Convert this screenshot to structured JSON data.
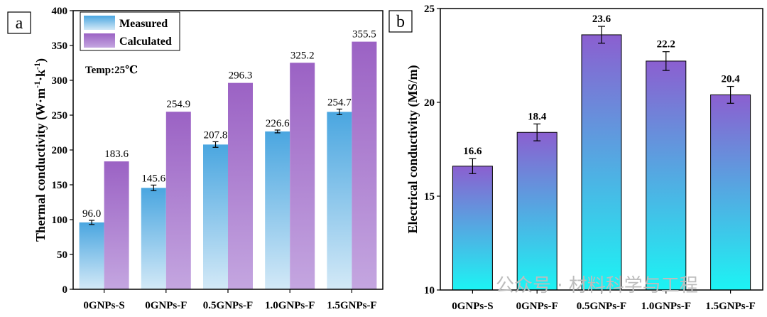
{
  "chart_data": [
    {
      "type": "bar",
      "panel_label": "a",
      "categories": [
        "0GNPs-S",
        "0GNPs-F",
        "0.5GNPs-F",
        "1.0GNPs-F",
        "1.5GNPs-F"
      ],
      "series": [
        {
          "name": "Measured",
          "values": [
            96.0,
            145.6,
            207.8,
            226.6,
            254.7
          ],
          "labels": [
            "96.0",
            "145.6",
            "207.8",
            "226.6",
            "254.7"
          ],
          "error": [
            3,
            4,
            4,
            2,
            4
          ],
          "color_top": "#4aa6e0",
          "color_bottom": "#d3e9f7"
        },
        {
          "name": "Calculated",
          "values": [
            183.6,
            254.9,
            296.3,
            325.2,
            355.5
          ],
          "labels": [
            "183.6",
            "254.9",
            "296.3",
            "325.2",
            "355.5"
          ],
          "color_top": "#9b62c4",
          "color_bottom": "#c4a6e0"
        }
      ],
      "ylabel_main": "Thermal conductivity (W·m",
      "ylabel_sup1": "-1",
      "ylabel_mid": "·k",
      "ylabel_sup2": "-1",
      "ylabel_end": ")",
      "ylim": [
        0,
        400
      ],
      "yticks": [
        0,
        50,
        100,
        150,
        200,
        250,
        300,
        350,
        400
      ],
      "annotation": "Temp:25℃",
      "legend_position": "top-left"
    },
    {
      "type": "bar",
      "panel_label": "b",
      "categories": [
        "0GNPs-S",
        "0GNPs-F",
        "0.5GNPs-F",
        "1.0GNPs-F",
        "1.5GNPs-F"
      ],
      "values": [
        16.6,
        18.4,
        23.6,
        22.2,
        20.4
      ],
      "labels": [
        "16.6",
        "18.4",
        "23.6",
        "22.2",
        "20.4"
      ],
      "error": [
        0.4,
        0.45,
        0.45,
        0.5,
        0.45
      ],
      "color_top": "#8b5fd0",
      "color_bottom": "#1cf4f4",
      "ylabel": "Electrical conductivity (MS/m)",
      "ylim": [
        10,
        25
      ],
      "yticks": [
        10,
        15,
        20,
        25
      ]
    }
  ],
  "watermark": "公众号 · 材料科学与工程"
}
